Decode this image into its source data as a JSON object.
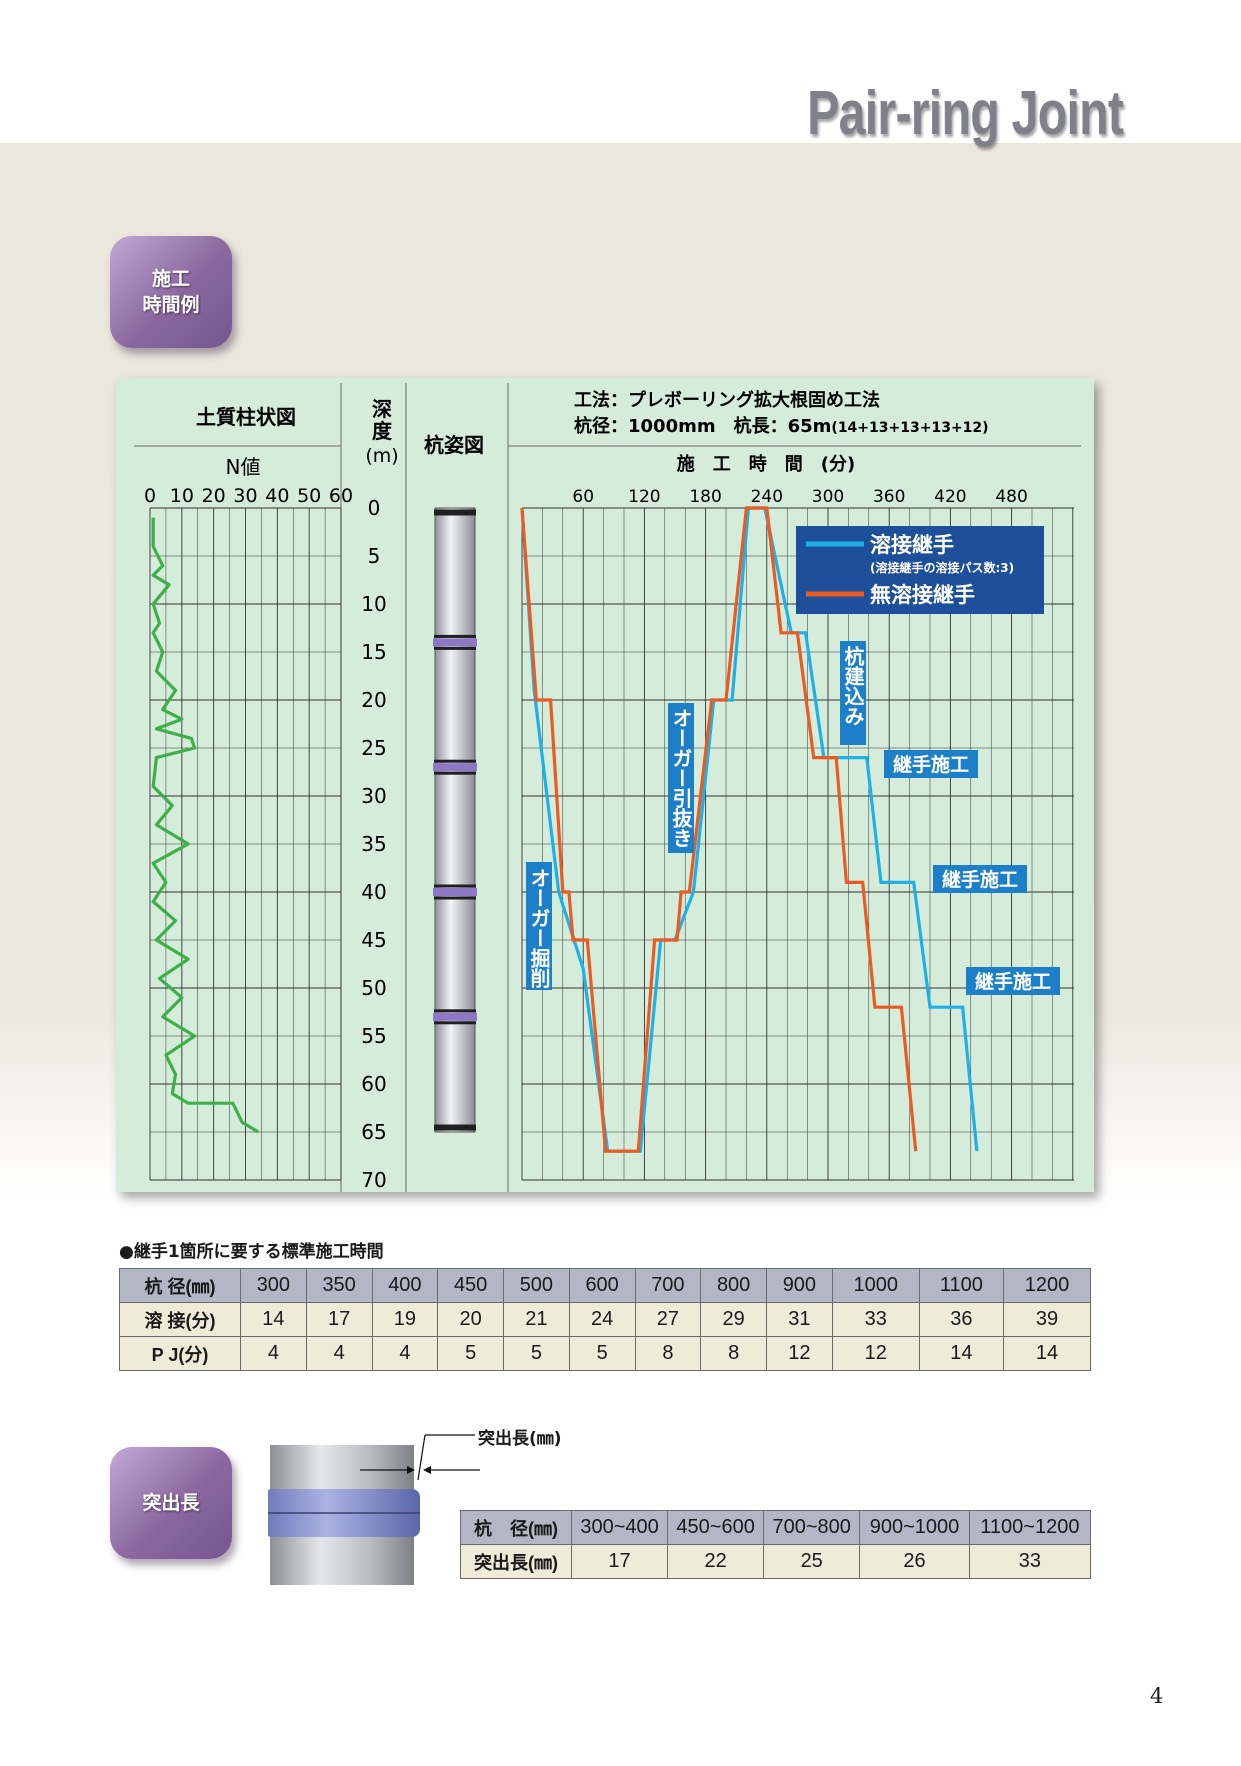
{
  "brand": "Pair-ring Joint",
  "badges": {
    "construction_time": [
      "施工",
      "時間例"
    ],
    "protrusion": "突出長"
  },
  "chart": {
    "header_left": "土質柱状図",
    "header_depth": [
      "深",
      "度",
      "(m)"
    ],
    "header_pile": "杭姿図",
    "method": "工法：プレボーリング拡大根固め工法",
    "spec_main": "杭径：1000mm　杭長：65m",
    "spec_small": "(14+13+13+13+12)",
    "n_label": "N値",
    "n_ticks": [
      "0",
      "10",
      "20",
      "30",
      "40",
      "50",
      "60"
    ],
    "time_label": "施　工　時　間　(分)",
    "time_ticks": [
      "60",
      "120",
      "180",
      "240",
      "300",
      "360",
      "420",
      "480"
    ],
    "depth_ticks": [
      "0",
      "5",
      "10",
      "15",
      "20",
      "25",
      "30",
      "35",
      "40",
      "45",
      "50",
      "55",
      "60",
      "65",
      "70"
    ],
    "legend": {
      "welded": "溶接継手",
      "welded_note": "(溶接継手の溶接パス数:3)",
      "pj": "無溶接継手",
      "welded_color": "#1eb0e6",
      "pj_color": "#ec5a24"
    },
    "annotations": {
      "auger_drill": "オーガー掘削",
      "auger_pull": "オーガー引抜き",
      "pile_insert": "杭建込み",
      "joint1": "継手施工",
      "joint2": "継手施工",
      "joint3": "継手施工"
    }
  },
  "chart_data": [
    {
      "type": "line",
      "title": "N値",
      "xlim": [
        0,
        60
      ],
      "ylim": [
        0,
        70
      ],
      "series": [
        {
          "name": "N値",
          "points": [
            [
              1,
              1
            ],
            [
              1,
              4
            ],
            [
              4,
              6
            ],
            [
              1,
              7
            ],
            [
              6,
              8
            ],
            [
              1,
              10
            ],
            [
              3,
              12
            ],
            [
              1,
              13
            ],
            [
              4,
              15
            ],
            [
              2,
              17
            ],
            [
              8,
              19
            ],
            [
              4,
              21
            ],
            [
              10,
              22
            ],
            [
              2,
              23
            ],
            [
              13,
              24
            ],
            [
              14,
              25
            ],
            [
              2,
              26
            ],
            [
              1,
              29
            ],
            [
              7,
              31
            ],
            [
              2,
              33
            ],
            [
              12,
              35
            ],
            [
              1,
              37
            ],
            [
              5,
              39
            ],
            [
              1,
              41
            ],
            [
              8,
              43
            ],
            [
              2,
              45
            ],
            [
              12,
              47
            ],
            [
              3,
              49
            ],
            [
              10,
              51
            ],
            [
              4,
              53
            ],
            [
              14,
              55
            ],
            [
              5,
              57
            ],
            [
              8,
              59
            ],
            [
              7,
              61
            ],
            [
              12,
              62
            ],
            [
              26,
              62
            ],
            [
              29,
              64
            ],
            [
              34,
              65
            ]
          ]
        }
      ]
    },
    {
      "type": "line",
      "title": "施工時間",
      "xlabel": "施工時間(分)",
      "ylabel": "深度(m)",
      "xlim": [
        0,
        540
      ],
      "ylim": [
        0,
        70
      ],
      "series": [
        {
          "name": "溶接継手",
          "color": "#1eb0e6",
          "points": [
            [
              0,
              0
            ],
            [
              12,
              19
            ],
            [
              36,
              40
            ],
            [
              60,
              48
            ],
            [
              84,
              67
            ],
            [
              116,
              67
            ],
            [
              136,
              45
            ],
            [
              150,
              45
            ],
            [
              168,
              40
            ],
            [
              188,
              20
            ],
            [
              206,
              20
            ],
            [
              222,
              0
            ],
            [
              238,
              0
            ],
            [
              264,
              13
            ],
            [
              278,
              13
            ],
            [
              296,
              26
            ],
            [
              338,
              26
            ],
            [
              352,
              39
            ],
            [
              384,
              39
            ],
            [
              400,
              52
            ],
            [
              432,
              52
            ],
            [
              446,
              67
            ]
          ]
        },
        {
          "name": "無溶接継手",
          "color": "#ec5a24",
          "points": [
            [
              0,
              0
            ],
            [
              14,
              20
            ],
            [
              28,
              20
            ],
            [
              40,
              40
            ],
            [
              46,
              40
            ],
            [
              50,
              45
            ],
            [
              64,
              45
            ],
            [
              82,
              67
            ],
            [
              114,
              67
            ],
            [
              130,
              45
            ],
            [
              152,
              45
            ],
            [
              156,
              40
            ],
            [
              164,
              40
            ],
            [
              186,
              20
            ],
            [
              200,
              20
            ],
            [
              220,
              0
            ],
            [
              240,
              0
            ],
            [
              254,
              13
            ],
            [
              270,
              13
            ],
            [
              286,
              26
            ],
            [
              308,
              26
            ],
            [
              318,
              39
            ],
            [
              334,
              39
            ],
            [
              346,
              52
            ],
            [
              372,
              52
            ],
            [
              386,
              67
            ]
          ]
        }
      ]
    }
  ],
  "standard_time": {
    "title": "●継手1箇所に要する標準施工時間",
    "header": "杭 径(㎜)",
    "diameters": [
      "300",
      "350",
      "400",
      "450",
      "500",
      "600",
      "700",
      "800",
      "900",
      "1000",
      "1100",
      "1200"
    ],
    "welded_label": "溶 接(分)",
    "welded": [
      "14",
      "17",
      "19",
      "20",
      "21",
      "24",
      "27",
      "29",
      "31",
      "33",
      "36",
      "39"
    ],
    "pj_label": "P J(分)",
    "pj": [
      "4",
      "4",
      "4",
      "5",
      "5",
      "5",
      "8",
      "8",
      "12",
      "12",
      "14",
      "14"
    ]
  },
  "protrusion": {
    "callout": "突出長(㎜)",
    "header": "杭　径(㎜)",
    "ranges": [
      "300~400",
      "450~600",
      "700~800",
      "900~1000",
      "1100~1200"
    ],
    "label": "突出長(㎜)",
    "values": [
      "17",
      "22",
      "25",
      "26",
      "33"
    ]
  },
  "page_number": "4"
}
